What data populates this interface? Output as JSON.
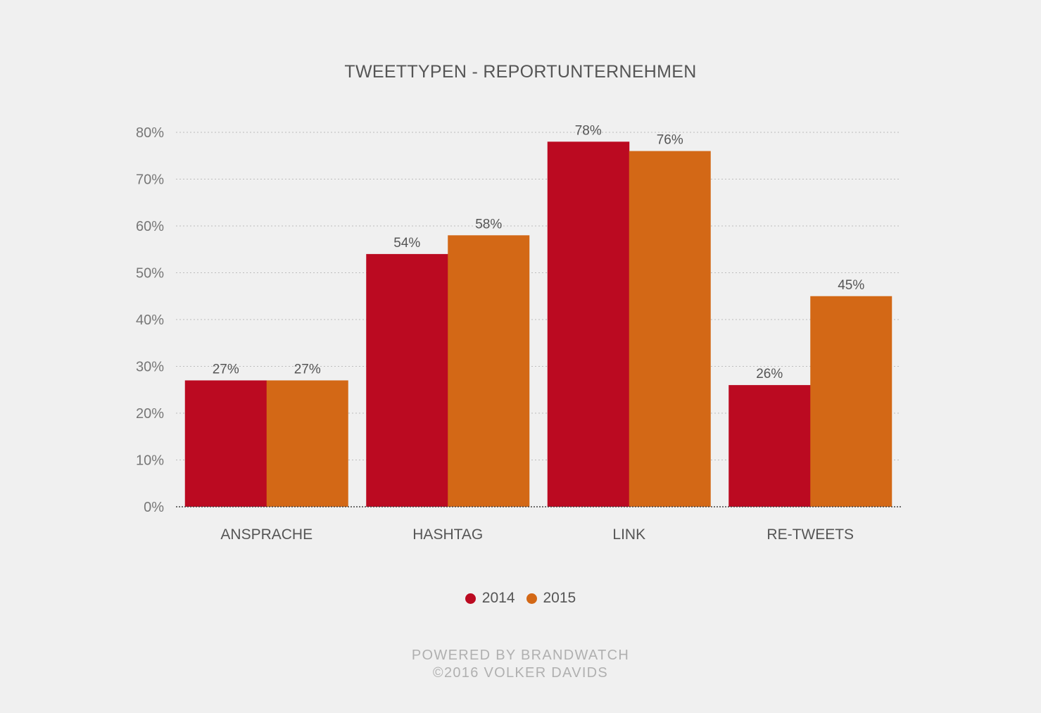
{
  "chart_data": {
    "type": "bar",
    "title": "TWEETTYPEN - REPORTUNTERNEHMEN",
    "categories": [
      "ANSPRACHE",
      "HASHTAG",
      "LINK",
      "RE-TWEETS"
    ],
    "series": [
      {
        "name": "2014",
        "color": "#bb0a21",
        "values": [
          27,
          54,
          78,
          26
        ],
        "labels": [
          "27%",
          "54%",
          "78%",
          "26%"
        ]
      },
      {
        "name": "2015",
        "color": "#d36816",
        "values": [
          27,
          58,
          76,
          45
        ],
        "labels": [
          "27%",
          "58%",
          "76%",
          "45%"
        ]
      }
    ],
    "ylim": [
      0,
      80
    ],
    "yticks": [
      0,
      10,
      20,
      30,
      40,
      50,
      60,
      70,
      80
    ],
    "ytick_labels": [
      "0%",
      "10%",
      "20%",
      "30%",
      "40%",
      "50%",
      "60%",
      "70%",
      "80%"
    ],
    "grid": true,
    "legend_position": "bottom"
  },
  "footer": {
    "line1": "POWERED BY BRANDWATCH",
    "line2": "©2016 VOLKER DAVIDS"
  }
}
